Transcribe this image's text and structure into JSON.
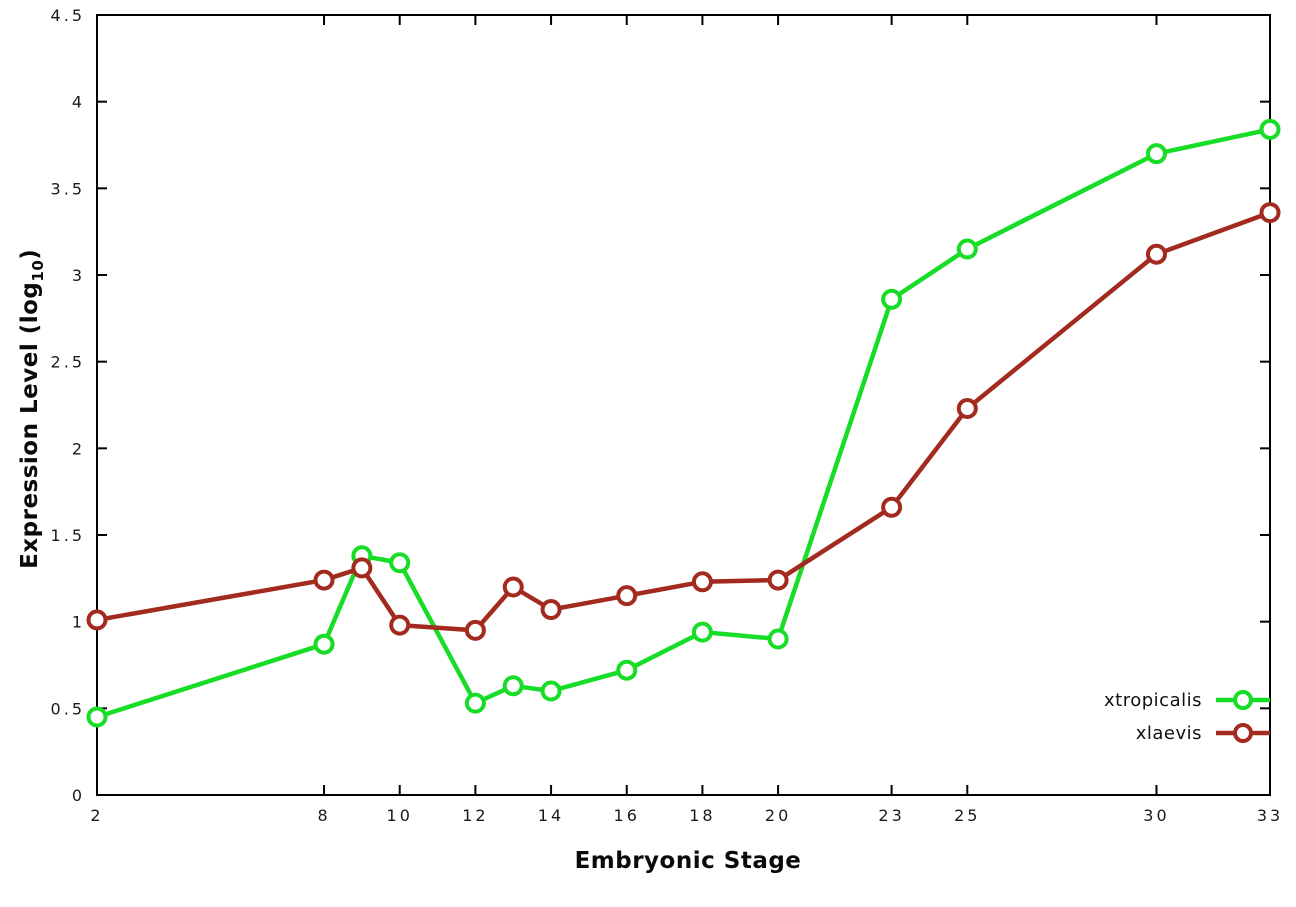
{
  "chart_data": {
    "type": "line",
    "title": "",
    "xlabel": "Embryonic Stage",
    "ylabel": "Expression Level (log10)",
    "ylabel_parts": {
      "pre": "Expression Level (log",
      "sub": "10",
      "post": ")"
    },
    "x": [
      2,
      8,
      9,
      10,
      12,
      13,
      14,
      16,
      18,
      20,
      23,
      25,
      30,
      33
    ],
    "xlim": [
      2,
      33
    ],
    "ylim": [
      0,
      4.5
    ],
    "xticks": [
      2,
      8,
      10,
      12,
      14,
      16,
      18,
      20,
      23,
      25,
      30,
      33
    ],
    "xtick_labels": [
      "2",
      "8",
      "10",
      "12",
      "14",
      "16",
      "18",
      "20",
      "23",
      "25",
      "30",
      "33"
    ],
    "yticks": [
      0,
      0.5,
      1,
      1.5,
      2,
      2.5,
      3,
      3.5,
      4,
      4.5
    ],
    "ytick_labels": [
      "0",
      "0.5",
      "1",
      "1.5",
      "2",
      "2.5",
      "3",
      "3.5",
      "4",
      "4.5"
    ],
    "grid": false,
    "legend_position": "inside-bottom-right",
    "series": [
      {
        "name": "xtropicalis",
        "color": "#17dd27",
        "values": [
          0.45,
          0.87,
          1.38,
          1.34,
          0.53,
          0.63,
          0.6,
          0.72,
          0.94,
          0.9,
          2.86,
          3.15,
          3.7,
          3.84
        ]
      },
      {
        "name": "xlaevis",
        "color": "#a32a1f",
        "values": [
          1.01,
          1.24,
          1.31,
          0.98,
          0.95,
          1.2,
          1.07,
          1.15,
          1.23,
          1.24,
          1.66,
          2.23,
          3.12,
          3.36
        ]
      }
    ],
    "frame_color": "#000000",
    "tick_text_color": "#1a1a1a"
  }
}
